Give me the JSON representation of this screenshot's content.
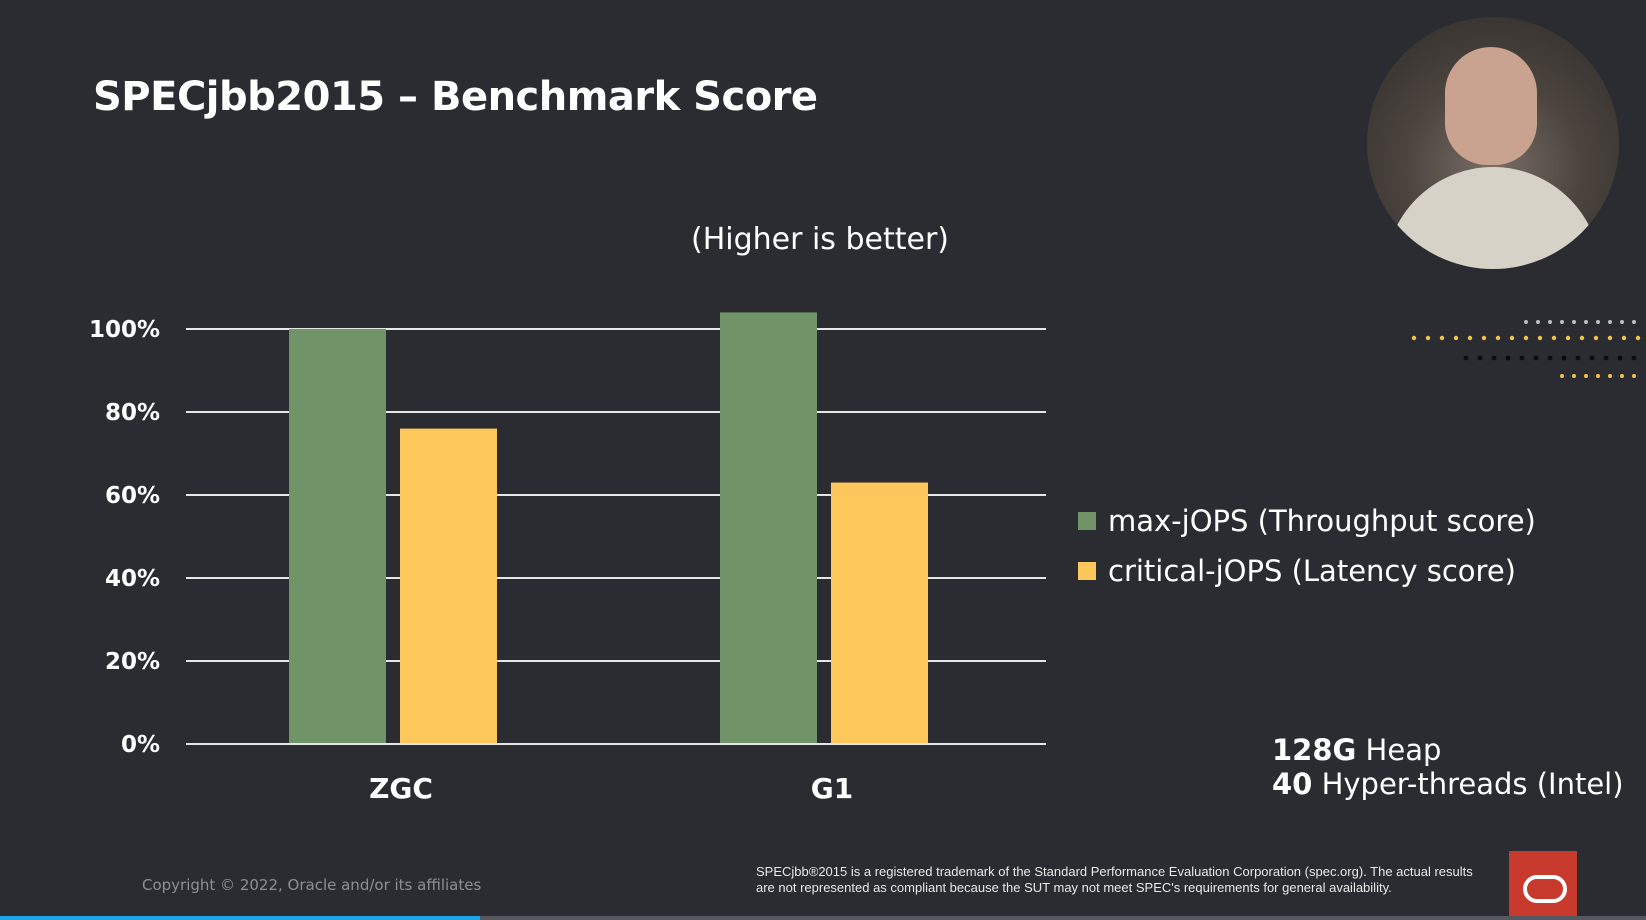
{
  "slide": {
    "title": "SPECjbb2015 – Benchmark Score",
    "subtitle": "(Higher is better)",
    "spec_note": {
      "line1_bold": "128G",
      "line1_rest": " Heap",
      "line2_bold": "40",
      "line2_rest": " Hyper-threads (Intel)"
    },
    "copyright": "Copyright © 2022, Oracle and/or its affiliates",
    "disclaimer": "SPECjbb®2015 is a registered trademark of the Standard Performance Evaluation Corporation (spec.org). The actual results are not represented as compliant because the SUT may not meet SPEC's requirements for general availability."
  },
  "chart_data": {
    "type": "bar",
    "title": "SPECjbb2015 – Benchmark Score",
    "subtitle": "(Higher is better)",
    "categories": [
      "ZGC",
      "G1"
    ],
    "series": [
      {
        "name": "max-jOPS (Throughput score)",
        "color": "#709467",
        "values": [
          100,
          104
        ]
      },
      {
        "name": "critical-jOPS (Latency score)",
        "color": "#fec75b",
        "values": [
          76,
          63
        ]
      }
    ],
    "yticks": [
      "0%",
      "20%",
      "40%",
      "60%",
      "80%",
      "100%"
    ],
    "ytick_values": [
      0,
      20,
      40,
      60,
      80,
      100
    ],
    "ylim": [
      0,
      100
    ],
    "grid": true,
    "legend_position": "right"
  },
  "colors": {
    "background": "#2a2c31",
    "grid": "#e6e6e6"
  },
  "icons": {
    "webcam": "presenter-video",
    "logo": "oracle-logo"
  }
}
